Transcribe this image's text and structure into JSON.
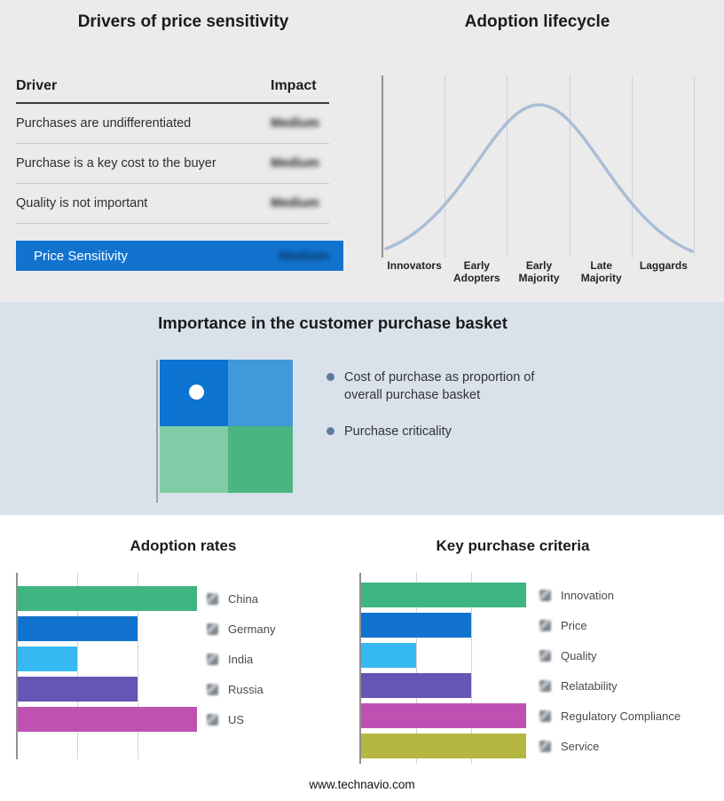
{
  "page": {
    "footer": "www.technavio.com"
  },
  "price_sensitivity": {
    "title": "Drivers of price sensitivity",
    "columns": {
      "driver": "Driver",
      "impact": "Impact"
    },
    "rows": [
      {
        "driver": "Purchases are undifferentiated",
        "impact": "Medium",
        "blurred": true
      },
      {
        "driver": "Purchase is a key cost to the buyer",
        "impact": "Medium",
        "blurred": true
      },
      {
        "driver": "Quality is not important",
        "impact": "Medium",
        "blurred": true
      }
    ],
    "summary": {
      "label": "Price Sensitivity",
      "impact": "Medium",
      "blurred": true,
      "color": "#1273cf"
    }
  },
  "purchase_basket": {
    "title": "Importance in the customer purchase basket",
    "bullets": [
      "Cost of purchase as proportion of overall purchase basket",
      "Purchase criticality"
    ],
    "bullet_color": "#5f7a9d",
    "quadrant": {
      "colors": {
        "tl": "#0e74d1",
        "tr": "#4299da",
        "bl": "#80cca6",
        "br": "#4bb582"
      },
      "dot_color": "#ffffff"
    }
  },
  "chart_data": [
    {
      "id": "adoption-lifecycle",
      "type": "line",
      "title": "Adoption lifecycle",
      "x": [
        "Innovators",
        "Early Adopters",
        "Early Majority",
        "Late Majority",
        "Laggards"
      ],
      "values": [
        10,
        55,
        100,
        55,
        10
      ],
      "note": "bell-shaped adoption curve, relative height % at each stage center",
      "line_color": "#a9bdd6",
      "grid": true,
      "legend_position": "none"
    },
    {
      "id": "adoption-rates",
      "type": "bar",
      "orientation": "horizontal",
      "title": "Adoption rates",
      "categories": [
        "China",
        "Germany",
        "India",
        "Russia",
        "US"
      ],
      "values": [
        3,
        2,
        1,
        2,
        3
      ],
      "xlim": [
        0,
        3
      ],
      "colors": [
        "#3fb581",
        "#1273cf",
        "#36b9f3",
        "#6456b4",
        "#bf51b3"
      ],
      "grid": true,
      "legend_position": "right",
      "legend_marker": "blurred-square"
    },
    {
      "id": "key-purchase-criteria",
      "type": "bar",
      "orientation": "horizontal",
      "title": "Key purchase criteria",
      "categories": [
        "Innovation",
        "Price",
        "Quality",
        "Relatability",
        "Regulatory Compliance",
        "Service"
      ],
      "values": [
        3,
        2,
        1,
        2,
        3,
        3
      ],
      "xlim": [
        0,
        3
      ],
      "colors": [
        "#3fb581",
        "#1273cf",
        "#36b9f3",
        "#6456b4",
        "#bf51b3",
        "#b5b742"
      ],
      "grid": true,
      "legend_position": "right",
      "legend_marker": "blurred-square"
    }
  ]
}
